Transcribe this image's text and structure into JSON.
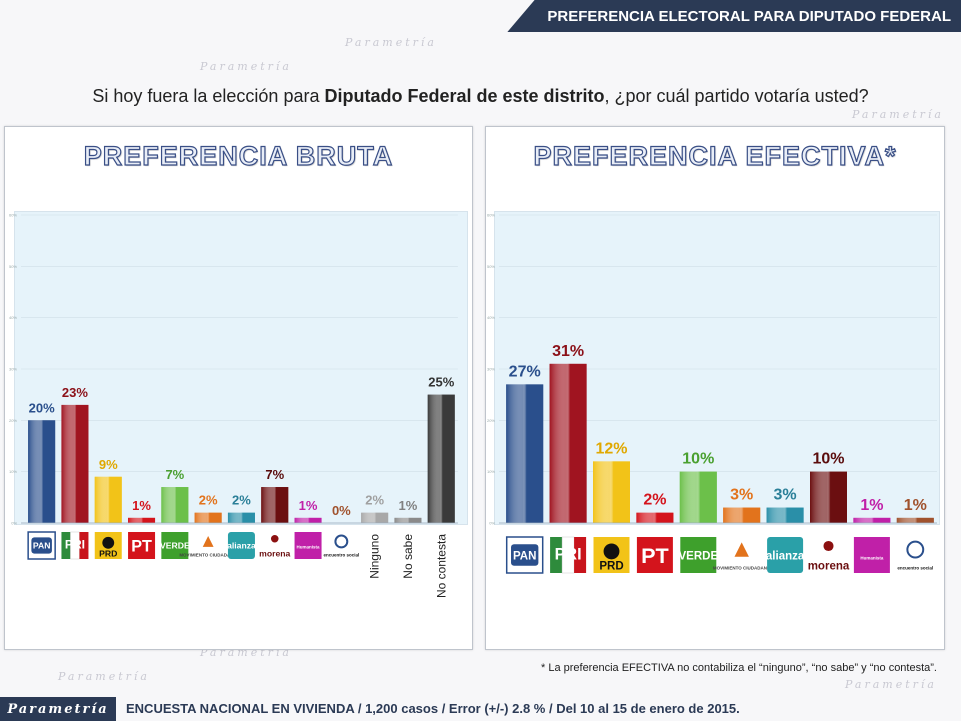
{
  "header": {
    "title": "PREFERENCIA ELECTORAL PARA DIPUTADO FEDERAL"
  },
  "question": {
    "before": "Si hoy fuera la elección para ",
    "bold": "Diputado Federal de este distrito",
    "after": ", ¿por cuál partido votaría usted?"
  },
  "watermark": "Parametría",
  "colors": {
    "PAN": "#2a4f8c",
    "PRI": "#a01420",
    "PRD": "#f2c318",
    "PT": "#d4141c",
    "VERDE": "#6cc04a",
    "MC": "#e2731c",
    "PANAL": "#2a8fa8",
    "MORENA": "#6b0f10",
    "PH": "#c020a8",
    "PES": "#a0522d",
    "Ninguno": "#a8a8a8",
    "NoSabe": "#8a8a8a",
    "NoContesta": "#3a3a3a"
  },
  "logos": {
    "PAN": "PAN",
    "PRI": "PRI",
    "PRD": "PRD",
    "PT": "PT",
    "VERDE": "VERDE",
    "MC": "MOVIMIENTO CIUDADANO",
    "PANAL": "alianza",
    "MORENA": "morena",
    "PH": "Humanista",
    "PES": "encuentro social"
  },
  "chart_data": [
    {
      "type": "bar",
      "title": "PREFERENCIA BRUTA",
      "categories": [
        "PAN",
        "PRI",
        "PRD",
        "PT",
        "VERDE",
        "MC",
        "PANAL",
        "MORENA",
        "PH",
        "PES",
        "Ninguno",
        "No sabe",
        "No contesta"
      ],
      "values": [
        20,
        23,
        9,
        1,
        7,
        2,
        2,
        7,
        1,
        0,
        2,
        1,
        25
      ],
      "labels": [
        "20%",
        "23%",
        "9%",
        "1%",
        "7%",
        "2%",
        "2%",
        "7%",
        "1%",
        "0%",
        "2%",
        "1%",
        "25%"
      ],
      "ylim": [
        0,
        60
      ],
      "yticks": [
        "0%",
        "10%",
        "20%",
        "30%",
        "40%",
        "50%",
        "60%"
      ],
      "grid": true
    },
    {
      "type": "bar",
      "title": "PREFERENCIA EFECTIVA*",
      "categories": [
        "PAN",
        "PRI",
        "PRD",
        "PT",
        "VERDE",
        "MC",
        "PANAL",
        "MORENA",
        "PH",
        "PES"
      ],
      "values": [
        27,
        31,
        12,
        2,
        10,
        3,
        3,
        10,
        1,
        1
      ],
      "labels": [
        "27%",
        "31%",
        "12%",
        "2%",
        "10%",
        "3%",
        "3%",
        "10%",
        "1%",
        "1%"
      ],
      "ylim": [
        0,
        60
      ],
      "yticks": [
        "0%",
        "10%",
        "20%",
        "30%",
        "40%",
        "50%",
        "60%"
      ],
      "grid": true
    }
  ],
  "footnote": "* La preferencia EFECTIVA no contabiliza el “ninguno”, “no sabe” y “no contesta”.",
  "footer": {
    "brand": "Parametría",
    "text": "ENCUESTA NACIONAL EN VIVIENDA / 1,200 casos / Error (+/-) 2.8 % / Del 10 al 15 de enero de 2015."
  }
}
